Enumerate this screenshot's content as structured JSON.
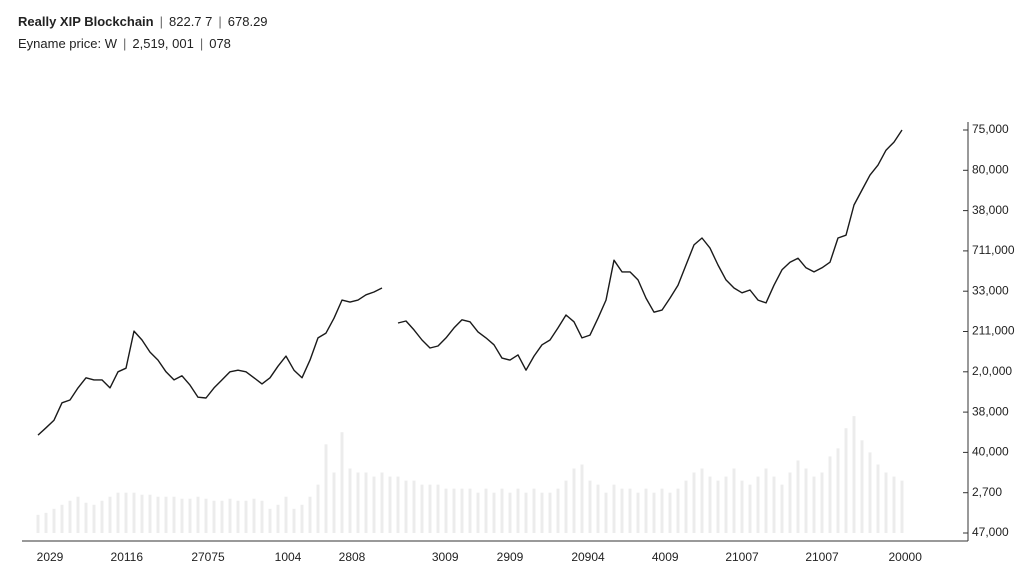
{
  "chart_data": {
    "type": "line",
    "title": "Really XIP Blockchain",
    "header_values": [
      "822.7 7",
      "678.29"
    ],
    "subtitle": "Eyname price: W",
    "subtitle_values": [
      "2,519, 001",
      "078"
    ],
    "xlim": [
      0,
      108
    ],
    "xticks": [
      {
        "value": 1.5,
        "label": "2029"
      },
      {
        "value": 11.1,
        "label": "20116"
      },
      {
        "value": 21.25,
        "label": "27075"
      },
      {
        "value": 31.25,
        "label": "1004"
      },
      {
        "value": 39.25,
        "label": "2808"
      },
      {
        "value": 50.9,
        "label": "3009"
      },
      {
        "value": 59,
        "label": "2909"
      },
      {
        "value": 68.75,
        "label": "20904"
      },
      {
        "value": 78.4,
        "label": "4009"
      },
      {
        "value": 88,
        "label": "21007"
      },
      {
        "value": 98,
        "label": "21007"
      },
      {
        "value": 108.4,
        "label": "20000"
      }
    ],
    "ylim": [
      0,
      10
    ],
    "yticks": [
      {
        "value": 10,
        "label": "75,000"
      },
      {
        "value": 9,
        "label": "80,000"
      },
      {
        "value": 8,
        "label": "38,000"
      },
      {
        "value": 7,
        "label": "711,000"
      },
      {
        "value": 6,
        "label": "33,000"
      },
      {
        "value": 5,
        "label": "211,000"
      },
      {
        "value": 4,
        "label": "2,0,000"
      },
      {
        "value": 3,
        "label": "38,000"
      },
      {
        "value": 2,
        "label": "40,000"
      },
      {
        "value": 1,
        "label": "2,700"
      },
      {
        "value": 0,
        "label": "47,000"
      }
    ],
    "grid": false,
    "series": [
      {
        "color": "#1a1a1a",
        "values": [
          2.43,
          2.61,
          2.8,
          3.23,
          3.3,
          3.6,
          3.85,
          3.8,
          3.8,
          3.6,
          4.0,
          4.09,
          5.01,
          4.79,
          4.49,
          4.29,
          4.0,
          3.8,
          3.9,
          3.67,
          3.37,
          3.35,
          3.6,
          3.8,
          4.0,
          4.04,
          4.0,
          3.85,
          3.7,
          3.85,
          4.14,
          4.39,
          4.04,
          3.85,
          4.29,
          4.84,
          4.96,
          5.33,
          5.78,
          5.73,
          5.78,
          5.91,
          5.98,
          6.08,
          null,
          5.21,
          5.26,
          5.04,
          4.79,
          4.59,
          4.64,
          4.84,
          5.09,
          5.29,
          5.24,
          4.99,
          4.84,
          4.67,
          4.34,
          4.29,
          4.42,
          4.04,
          4.39,
          4.67,
          4.79,
          5.09,
          5.41,
          5.24,
          4.84,
          4.91,
          5.33,
          5.78,
          6.77,
          6.48,
          6.48,
          6.28,
          5.83,
          5.48,
          5.53,
          5.83,
          6.15,
          6.65,
          7.15,
          7.32,
          7.07,
          6.65,
          6.28,
          6.08,
          5.96,
          6.03,
          5.78,
          5.71,
          6.15,
          6.53,
          6.72,
          6.82,
          6.58,
          6.48,
          6.58,
          6.72,
          7.32,
          7.39,
          8.14,
          8.51,
          8.88,
          9.13,
          9.5,
          9.7,
          10.0
        ]
      }
    ],
    "volume": {
      "color": "#ececec",
      "values": [
        0.45,
        0.5,
        0.6,
        0.7,
        0.8,
        0.9,
        0.75,
        0.7,
        0.8,
        0.9,
        1.0,
        1.0,
        1.0,
        0.95,
        0.95,
        0.9,
        0.9,
        0.9,
        0.85,
        0.85,
        0.9,
        0.85,
        0.8,
        0.8,
        0.85,
        0.8,
        0.8,
        0.85,
        0.8,
        0.6,
        0.7,
        0.9,
        0.6,
        0.7,
        0.9,
        1.2,
        2.2,
        1.5,
        2.5,
        1.6,
        1.5,
        1.5,
        1.4,
        1.5,
        1.4,
        1.4,
        1.3,
        1.3,
        1.2,
        1.2,
        1.2,
        1.1,
        1.1,
        1.1,
        1.1,
        1.0,
        1.1,
        1.0,
        1.1,
        1.0,
        1.1,
        1.0,
        1.1,
        1.0,
        1.0,
        1.1,
        1.3,
        1.6,
        1.7,
        1.3,
        1.2,
        1.0,
        1.2,
        1.1,
        1.1,
        1.0,
        1.1,
        1.0,
        1.1,
        1.0,
        1.1,
        1.3,
        1.5,
        1.6,
        1.4,
        1.3,
        1.4,
        1.6,
        1.3,
        1.2,
        1.4,
        1.6,
        1.4,
        1.2,
        1.5,
        1.8,
        1.6,
        1.4,
        1.5,
        1.9,
        2.1,
        2.6,
        2.9,
        2.3,
        2.0,
        1.7,
        1.5,
        1.4,
        1.3
      ]
    }
  }
}
